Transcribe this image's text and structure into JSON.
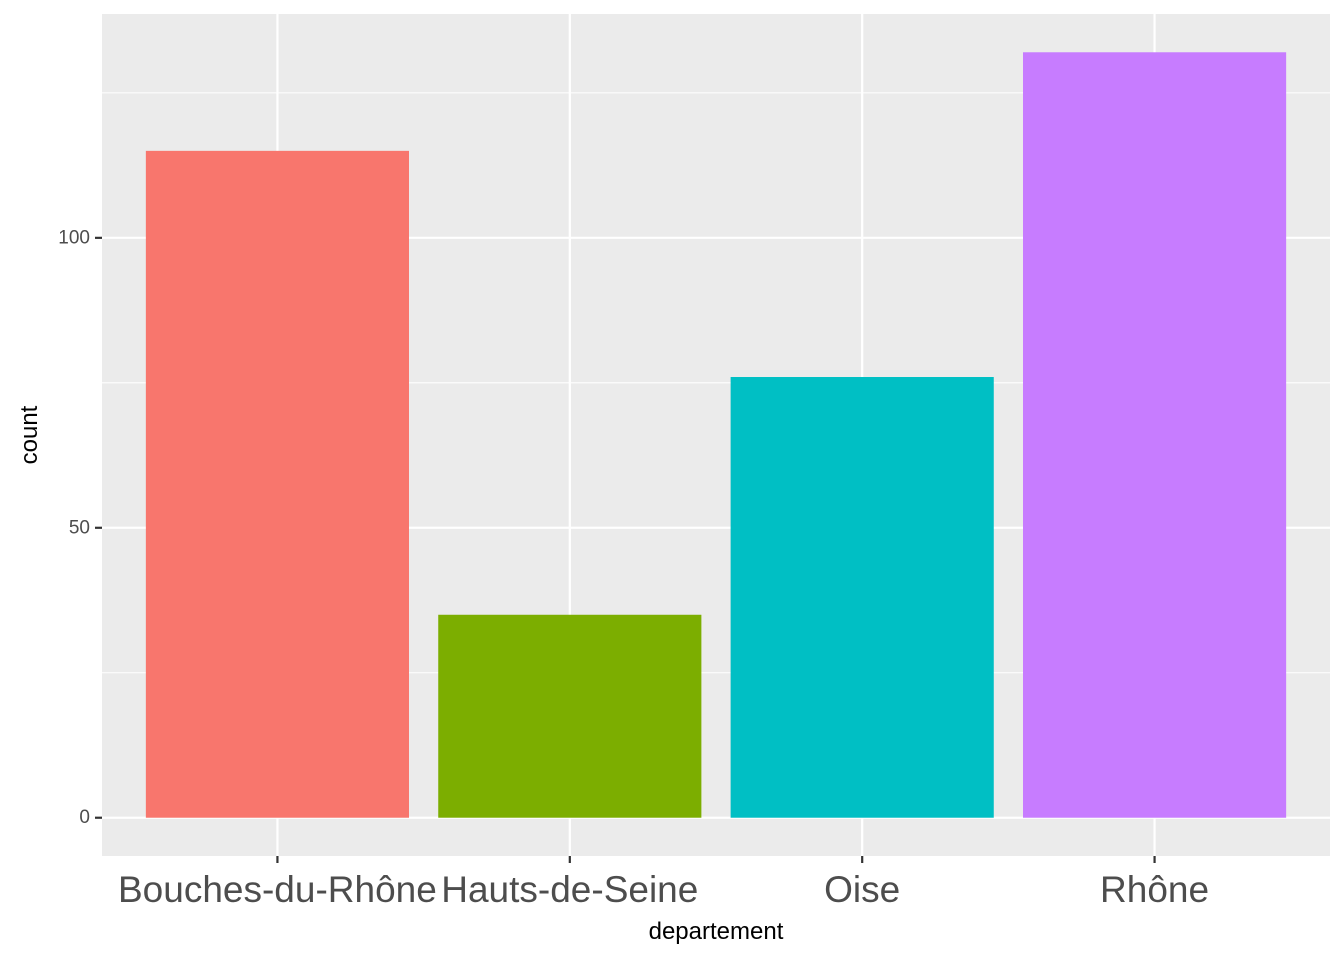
{
  "chart_data": {
    "type": "bar",
    "categories": [
      "Bouches-du-Rhône",
      "Hauts-de-Seine",
      "Oise",
      "Rhône"
    ],
    "values": [
      115,
      35,
      76,
      132
    ],
    "colors": [
      "#F8766D",
      "#7CAE00",
      "#00BFC4",
      "#C77CFF"
    ],
    "xlabel": "departement",
    "ylabel": "count",
    "ylim": [
      -6.6,
      138.6
    ],
    "yticks": [
      0,
      50,
      100
    ],
    "yticks_minor": [
      25,
      75,
      125
    ],
    "grid": true,
    "legend": "none",
    "panel_background": "#EBEBEB",
    "grid_color": "#FFFFFF",
    "tick_color": "#333333"
  }
}
